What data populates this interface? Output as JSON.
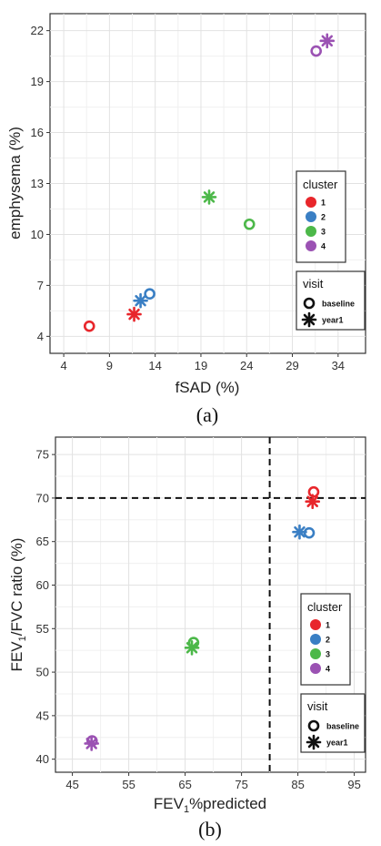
{
  "chart_data": [
    {
      "type": "scatter",
      "xlabel": "fSAD (%)",
      "ylabel": "emphysema (%)",
      "xlim": [
        2.5,
        37
      ],
      "ylim": [
        3,
        23
      ],
      "xticks": [
        4,
        9,
        14,
        19,
        24,
        29,
        34
      ],
      "yticks": [
        4,
        7,
        10,
        13,
        16,
        19,
        22
      ],
      "grid": true,
      "caption": "(a)",
      "legend_cluster": {
        "title": "cluster",
        "labels": [
          "1",
          "2",
          "3",
          "4"
        ]
      },
      "legend_visit": {
        "title": "visit",
        "labels": [
          "baseline",
          "year1"
        ]
      },
      "points": [
        {
          "cluster": "1",
          "visit": "baseline",
          "x": 6.8,
          "y": 4.6
        },
        {
          "cluster": "1",
          "visit": "year1",
          "x": 11.7,
          "y": 5.3
        },
        {
          "cluster": "2",
          "visit": "baseline",
          "x": 13.4,
          "y": 6.5
        },
        {
          "cluster": "2",
          "visit": "year1",
          "x": 12.4,
          "y": 6.1
        },
        {
          "cluster": "3",
          "visit": "baseline",
          "x": 24.3,
          "y": 10.6
        },
        {
          "cluster": "3",
          "visit": "year1",
          "x": 19.9,
          "y": 12.2
        },
        {
          "cluster": "4",
          "visit": "baseline",
          "x": 31.6,
          "y": 20.8
        },
        {
          "cluster": "4",
          "visit": "year1",
          "x": 32.8,
          "y": 21.4
        }
      ]
    },
    {
      "type": "scatter",
      "xlabel_main": "FEV",
      "xlabel_sub": "1",
      "xlabel_rest": "%predicted",
      "ylabel_main": "FEV",
      "ylabel_sub1": "1",
      "ylabel_mid": "/FVC ratio (%)",
      "xlim": [
        42,
        97
      ],
      "ylim": [
        38.5,
        77
      ],
      "xticks": [
        45,
        55,
        65,
        75,
        85,
        95
      ],
      "yticks": [
        40,
        45,
        50,
        55,
        60,
        65,
        70,
        75
      ],
      "grid": true,
      "reference_lines": {
        "x": 80,
        "y": 70
      },
      "caption": "(b)",
      "legend_cluster": {
        "title": "cluster",
        "labels": [
          "1",
          "2",
          "3",
          "4"
        ]
      },
      "legend_visit": {
        "title": "visit",
        "labels": [
          "baseline",
          "year1"
        ]
      },
      "points": [
        {
          "cluster": "1",
          "visit": "baseline",
          "x": 87.8,
          "y": 70.7
        },
        {
          "cluster": "1",
          "visit": "year1",
          "x": 87.6,
          "y": 69.6
        },
        {
          "cluster": "2",
          "visit": "baseline",
          "x": 87.0,
          "y": 66.0
        },
        {
          "cluster": "2",
          "visit": "year1",
          "x": 85.3,
          "y": 66.1
        },
        {
          "cluster": "3",
          "visit": "baseline",
          "x": 66.5,
          "y": 53.4
        },
        {
          "cluster": "3",
          "visit": "year1",
          "x": 66.2,
          "y": 52.8
        },
        {
          "cluster": "4",
          "visit": "baseline",
          "x": 48.5,
          "y": 42.1
        },
        {
          "cluster": "4",
          "visit": "year1",
          "x": 48.4,
          "y": 41.8
        }
      ]
    }
  ],
  "colors": {
    "1": "#e8262b",
    "2": "#3a7fc4",
    "3": "#4cb849",
    "4": "#9b52b3"
  }
}
